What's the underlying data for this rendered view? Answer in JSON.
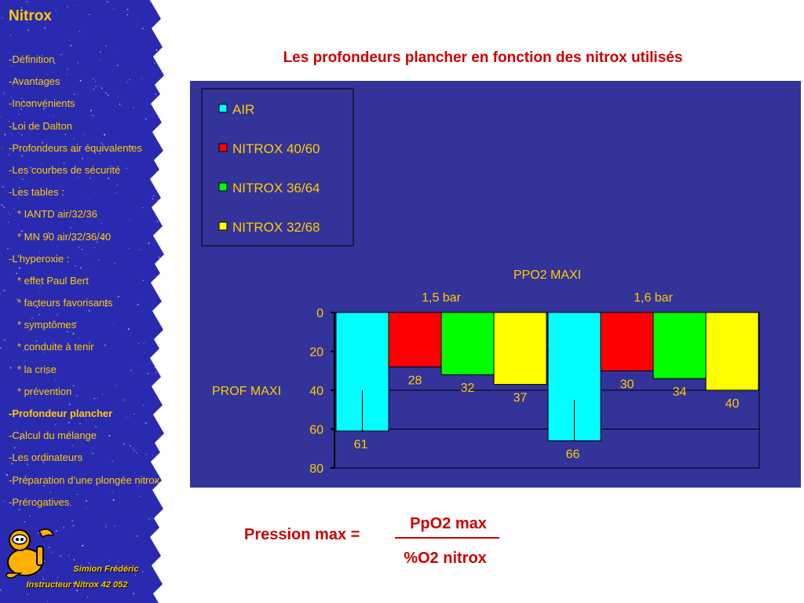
{
  "sidebar": {
    "title": "Nitrox",
    "items": [
      {
        "label": "-Définition",
        "level": 0
      },
      {
        "label": "-Avantages",
        "level": 0
      },
      {
        "label": "-Inconvénients",
        "level": 0
      },
      {
        "label": "-Loi de Dalton",
        "level": 0
      },
      {
        "label": "-Profondeurs air équivalentes",
        "level": 0
      },
      {
        "label": "-Les courbes de sécurité",
        "level": 0
      },
      {
        "label": "-Les tables :",
        "level": 0
      },
      {
        "label": "* IANTD air/32/36",
        "level": 1
      },
      {
        "label": "* MN 90 air/32/36/40",
        "level": 1
      },
      {
        "label": "-L’hyperoxie :",
        "level": 0
      },
      {
        "label": "* effet Paul Bert",
        "level": 1
      },
      {
        "label": "* facteurs favorisants",
        "level": 1
      },
      {
        "label": "* symptômes",
        "level": 1
      },
      {
        "label": "* conduite à tenir",
        "level": 1
      },
      {
        "label": "* la crise",
        "level": 1
      },
      {
        "label": "* prévention",
        "level": 1
      },
      {
        "label": "-Profondeur plancher",
        "level": 0,
        "active": true
      },
      {
        "label": "-Calcul du mélange",
        "level": 0
      },
      {
        "label": "-Les ordinateurs",
        "level": 0
      },
      {
        "label": "-Préparation d’une plongée nitrox",
        "level": 0
      },
      {
        "label": "-Prérogatives",
        "level": 0
      }
    ],
    "author": "Simion Frédéric",
    "instructor": "Instructeur Nitrox 42 052"
  },
  "slide_title": "Les profondeurs plancher en fonction des nitrox utilisés",
  "formula": {
    "lhs": "Pression max =",
    "numerator": "PpO2 max",
    "denominator": "%O2 nitrox"
  },
  "colors": {
    "sidebar_bg": "#2a2ab0",
    "accent_text": "#ffcc00",
    "title_red": "#cc0000",
    "chart_bg": "#333399"
  },
  "chart_data": {
    "type": "bar",
    "title": "PPO2 MAXI",
    "ylabel": "PROF MAXI",
    "ylim": [
      0,
      80
    ],
    "yticks": [
      "0",
      "20",
      "40",
      "60",
      "80"
    ],
    "y_inverted": true,
    "grid": true,
    "legend_position": "top-left",
    "groups": [
      "1,5 bar",
      "1,6 bar"
    ],
    "series": [
      {
        "name": "AIR",
        "color": "#00ffff",
        "values": [
          61,
          66
        ],
        "labels": [
          "61",
          "66"
        ]
      },
      {
        "name": "NITROX 40/60",
        "color": "#ff0000",
        "values": [
          28,
          30
        ],
        "labels": [
          "28",
          "30"
        ]
      },
      {
        "name": "NITROX 36/64",
        "color": "#00ff00",
        "values": [
          32,
          34
        ],
        "labels": [
          "32",
          "34"
        ]
      },
      {
        "name": "NITROX 32/68",
        "color": "#ffff00",
        "values": [
          37,
          40
        ],
        "labels": [
          "37",
          "40"
        ]
      }
    ]
  }
}
